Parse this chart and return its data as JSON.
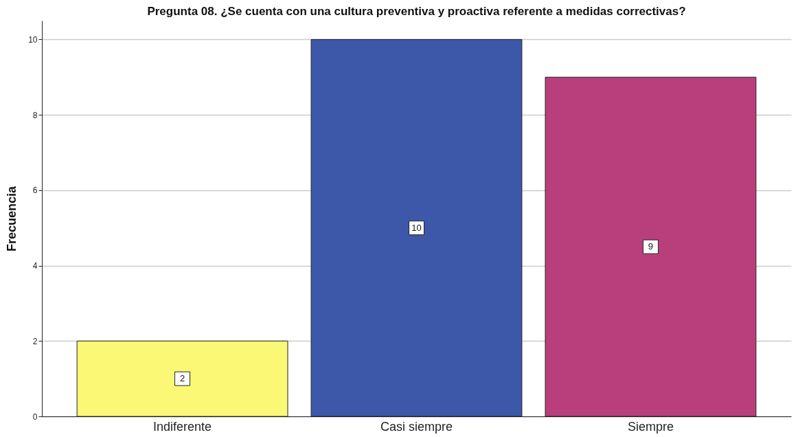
{
  "chart_data": {
    "type": "bar",
    "title": "Pregunta 08. ¿Se cuenta con una cultura preventiva y proactiva referente a medidas correctivas?",
    "ylabel": "Frecuencia",
    "categories": [
      "Indiferente",
      "Casi siempre",
      "Siempre"
    ],
    "values": [
      2,
      10,
      9
    ],
    "colors": [
      "#fbf876",
      "#3d57a9",
      "#b93f7c"
    ],
    "ylim": [
      0,
      10.5
    ],
    "yticks": [
      0,
      2,
      4,
      6,
      8,
      10
    ],
    "grid": "y",
    "data_labels": true
  }
}
